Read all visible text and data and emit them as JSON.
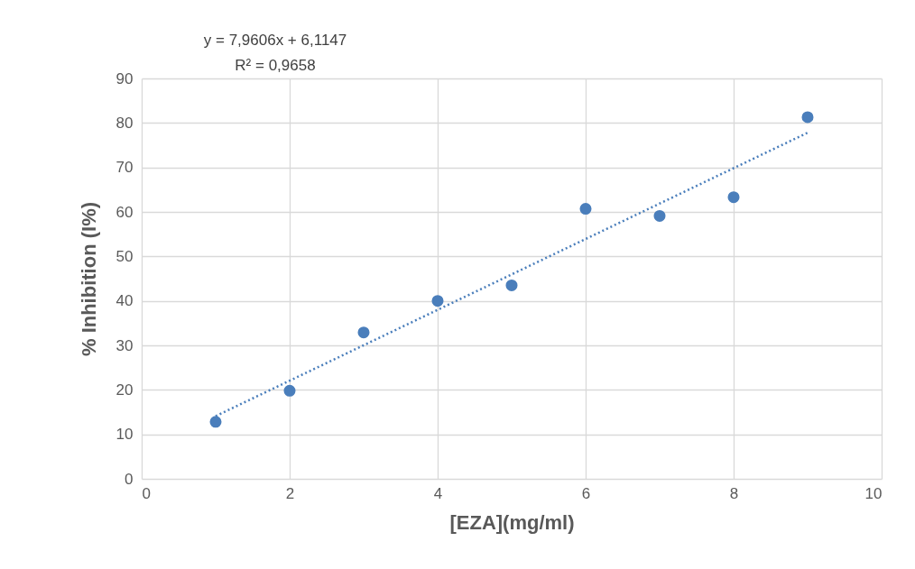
{
  "chart_data": {
    "type": "scatter",
    "xlabel": "[EZA](mg/ml)",
    "ylabel": "% Inhibition (I%)",
    "annotations": [
      "y = 7,9606x + 6,1147",
      "R² = 0,9658"
    ],
    "series": [
      {
        "color": "#4a7ebb",
        "x": [
          1,
          2,
          3,
          4,
          5,
          6,
          7,
          8,
          9
        ],
        "values": [
          12.8,
          19.8,
          32.9,
          40.0,
          43.5,
          60.7,
          59.1,
          63.3,
          81.3
        ],
        "marker": "circle"
      },
      {
        "type": "line",
        "color": "#4a7ebb",
        "x": [
          1,
          9
        ],
        "values": [
          14.1,
          77.8
        ],
        "line_style": "dotted",
        "marker": "none"
      }
    ],
    "xlim": [
      0,
      10
    ],
    "xticks": [
      0,
      2,
      4,
      6,
      8,
      10
    ],
    "ylim": [
      0,
      90
    ],
    "yticks": [
      0,
      10,
      20,
      30,
      40,
      50,
      60,
      70,
      80,
      90
    ],
    "grid": true
  }
}
